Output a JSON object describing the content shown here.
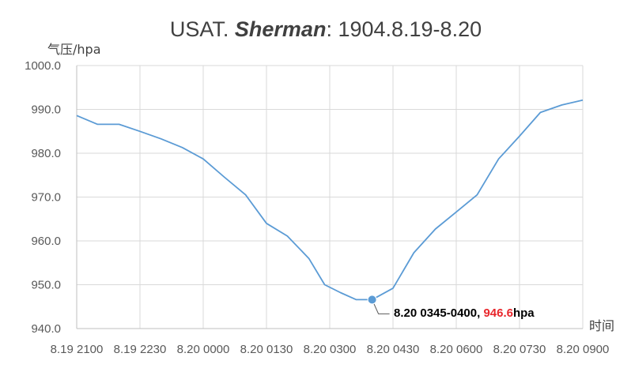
{
  "chart_data": {
    "type": "line",
    "title_prefix": "USAT. ",
    "title_ship": "Sherman",
    "title_suffix": ": 1904.8.19-8.20",
    "ylabel": "气压/hpa",
    "xlabel": "时间",
    "ylim": [
      940,
      1000
    ],
    "y_ticks": [
      "940.0",
      "950.0",
      "960.0",
      "970.0",
      "980.0",
      "990.0",
      "1000.0"
    ],
    "x_tick_labels": [
      "8.19 2100",
      "8.19 2230",
      "8.20 0000",
      "8.20 0130",
      "8.20 0300",
      "8.20 0430",
      "8.20 0600",
      "8.20 0730",
      "8.20 0900"
    ],
    "grid": true,
    "series": [
      {
        "color": "#5b9bd5",
        "x": [
          0,
          0.33,
          0.67,
          1,
          1.33,
          1.67,
          2,
          2.33,
          2.67,
          3,
          3.33,
          3.67,
          3.92,
          4.17,
          4.42,
          4.67,
          5,
          5.33,
          5.67,
          6,
          6.33,
          6.67,
          7,
          7.33,
          7.67,
          8
        ],
        "values": [
          988.6,
          986.6,
          986.6,
          985.0,
          983.3,
          981.3,
          978.7,
          974.6,
          970.5,
          964.0,
          961.1,
          956.0,
          950.0,
          948.2,
          946.6,
          946.6,
          949.2,
          957.3,
          962.7,
          966.6,
          970.5,
          978.7,
          983.9,
          989.3,
          991.0,
          992.1
        ]
      }
    ],
    "annotation": {
      "x": 4.67,
      "value": 946.6,
      "prefix": "8.20 0345-0400, ",
      "value_text": "946.6",
      "unit": "hpa",
      "marker_color": "#5b9bd5"
    }
  }
}
